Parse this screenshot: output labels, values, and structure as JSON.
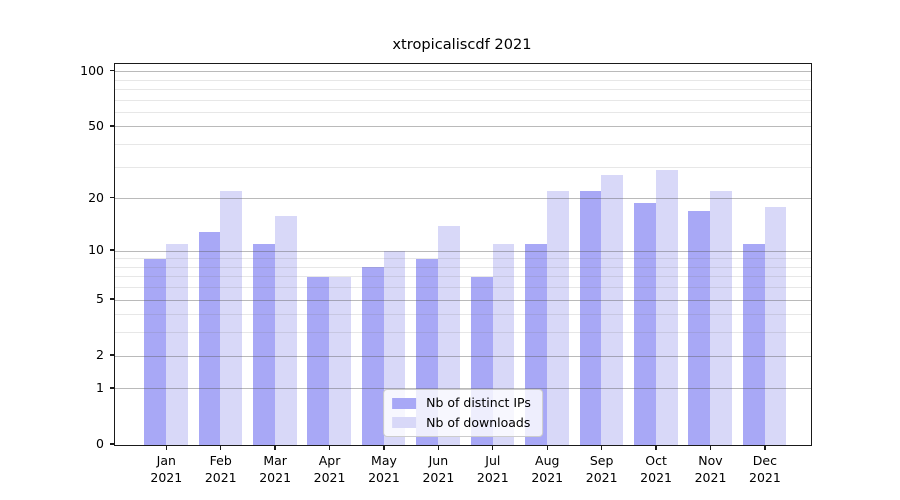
{
  "chart_data": {
    "type": "bar",
    "title": "xtropicaliscdf 2021",
    "categories": [
      "Jan",
      "Feb",
      "Mar",
      "Apr",
      "May",
      "Jun",
      "Jul",
      "Aug",
      "Sep",
      "Oct",
      "Nov",
      "Dec"
    ],
    "category_year": "2021",
    "series": [
      {
        "name": "Nb of distinct IPs",
        "color": "#a8a8f6",
        "values": [
          9,
          13,
          11,
          7,
          8,
          9,
          7,
          11,
          22,
          19,
          17,
          11
        ]
      },
      {
        "name": "Nb of downloads",
        "color": "#d8d8f8",
        "values": [
          11,
          22,
          16,
          7,
          10,
          14,
          11,
          22,
          27,
          29,
          22,
          18
        ]
      }
    ],
    "y_scale": "log10(1+y)",
    "y_ticks_labeled": [
      0,
      1,
      2,
      5,
      10,
      20,
      50,
      100
    ],
    "y_ticks_minor": [
      3,
      4,
      6,
      7,
      8,
      9,
      30,
      40,
      60,
      70,
      80,
      90
    ],
    "ylim": [
      0,
      110
    ],
    "grid": true,
    "legend_position": "lower center",
    "colors": {
      "major_grid": "#b3b3b3",
      "minor_grid": "#e6e6e6",
      "axis": "#1a1a1a",
      "background": "#ffffff"
    }
  }
}
